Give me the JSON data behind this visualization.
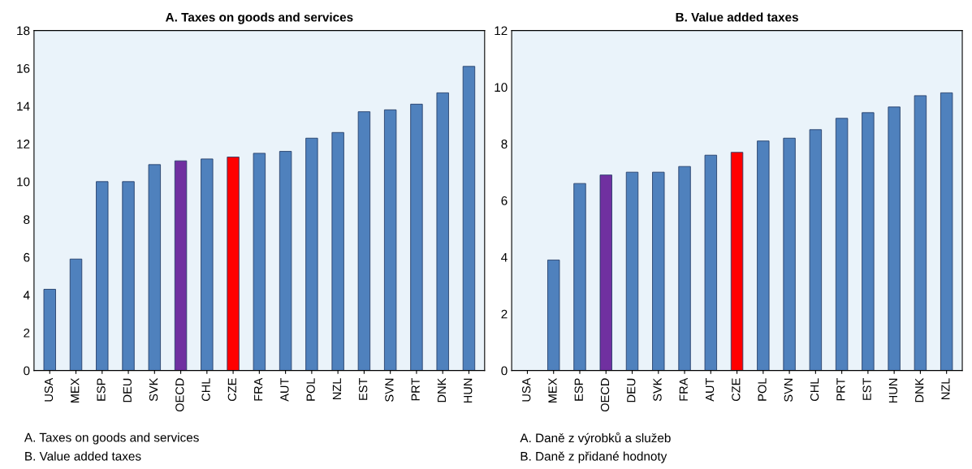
{
  "chart_data": [
    {
      "type": "bar",
      "title": "A. Taxes on goods and services",
      "categories": [
        "USA",
        "MEX",
        "ESP",
        "DEU",
        "SVK",
        "OECD",
        "CHL",
        "CZE",
        "FRA",
        "AUT",
        "POL",
        "NZL",
        "EST",
        "SVN",
        "PRT",
        "DNK",
        "HUN"
      ],
      "values": [
        4.3,
        5.9,
        10.0,
        10.0,
        10.9,
        11.1,
        11.2,
        11.3,
        11.5,
        11.6,
        12.3,
        12.6,
        13.7,
        13.8,
        14.1,
        14.7,
        16.1
      ],
      "colors": [
        "#4f81bd",
        "#4f81bd",
        "#4f81bd",
        "#4f81bd",
        "#4f81bd",
        "#7030a0",
        "#4f81bd",
        "#ff0000",
        "#4f81bd",
        "#4f81bd",
        "#4f81bd",
        "#4f81bd",
        "#4f81bd",
        "#4f81bd",
        "#4f81bd",
        "#4f81bd",
        "#4f81bd"
      ],
      "ylim": [
        0,
        18
      ],
      "yticks": [
        0,
        2,
        4,
        6,
        8,
        10,
        12,
        14,
        16,
        18
      ],
      "grid": false,
      "annotations": [
        "A. Taxes on goods and services",
        "B. Value added taxes"
      ]
    },
    {
      "type": "bar",
      "title": "B. Value added taxes",
      "categories": [
        "USA",
        "MEX",
        "ESP",
        "OECD",
        "DEU",
        "SVK",
        "FRA",
        "AUT",
        "CZE",
        "POL",
        "SVN",
        "CHL",
        "PRT",
        "EST",
        "HUN",
        "DNK",
        "NZL"
      ],
      "values": [
        null,
        3.9,
        6.6,
        6.9,
        7.0,
        7.0,
        7.2,
        7.6,
        7.7,
        8.1,
        8.2,
        8.5,
        8.9,
        9.1,
        9.3,
        9.7,
        9.8
      ],
      "colors": [
        "#4f81bd",
        "#4f81bd",
        "#4f81bd",
        "#7030a0",
        "#4f81bd",
        "#4f81bd",
        "#4f81bd",
        "#4f81bd",
        "#ff0000",
        "#4f81bd",
        "#4f81bd",
        "#4f81bd",
        "#4f81bd",
        "#4f81bd",
        "#4f81bd",
        "#4f81bd",
        "#4f81bd"
      ],
      "ylim": [
        0,
        12
      ],
      "yticks": [
        0,
        2,
        4,
        6,
        8,
        10,
        12
      ],
      "grid": false,
      "annotations": [
        "A. Daně z výrobků a služeb",
        "B. Daně z přidané hodnoty"
      ]
    }
  ]
}
